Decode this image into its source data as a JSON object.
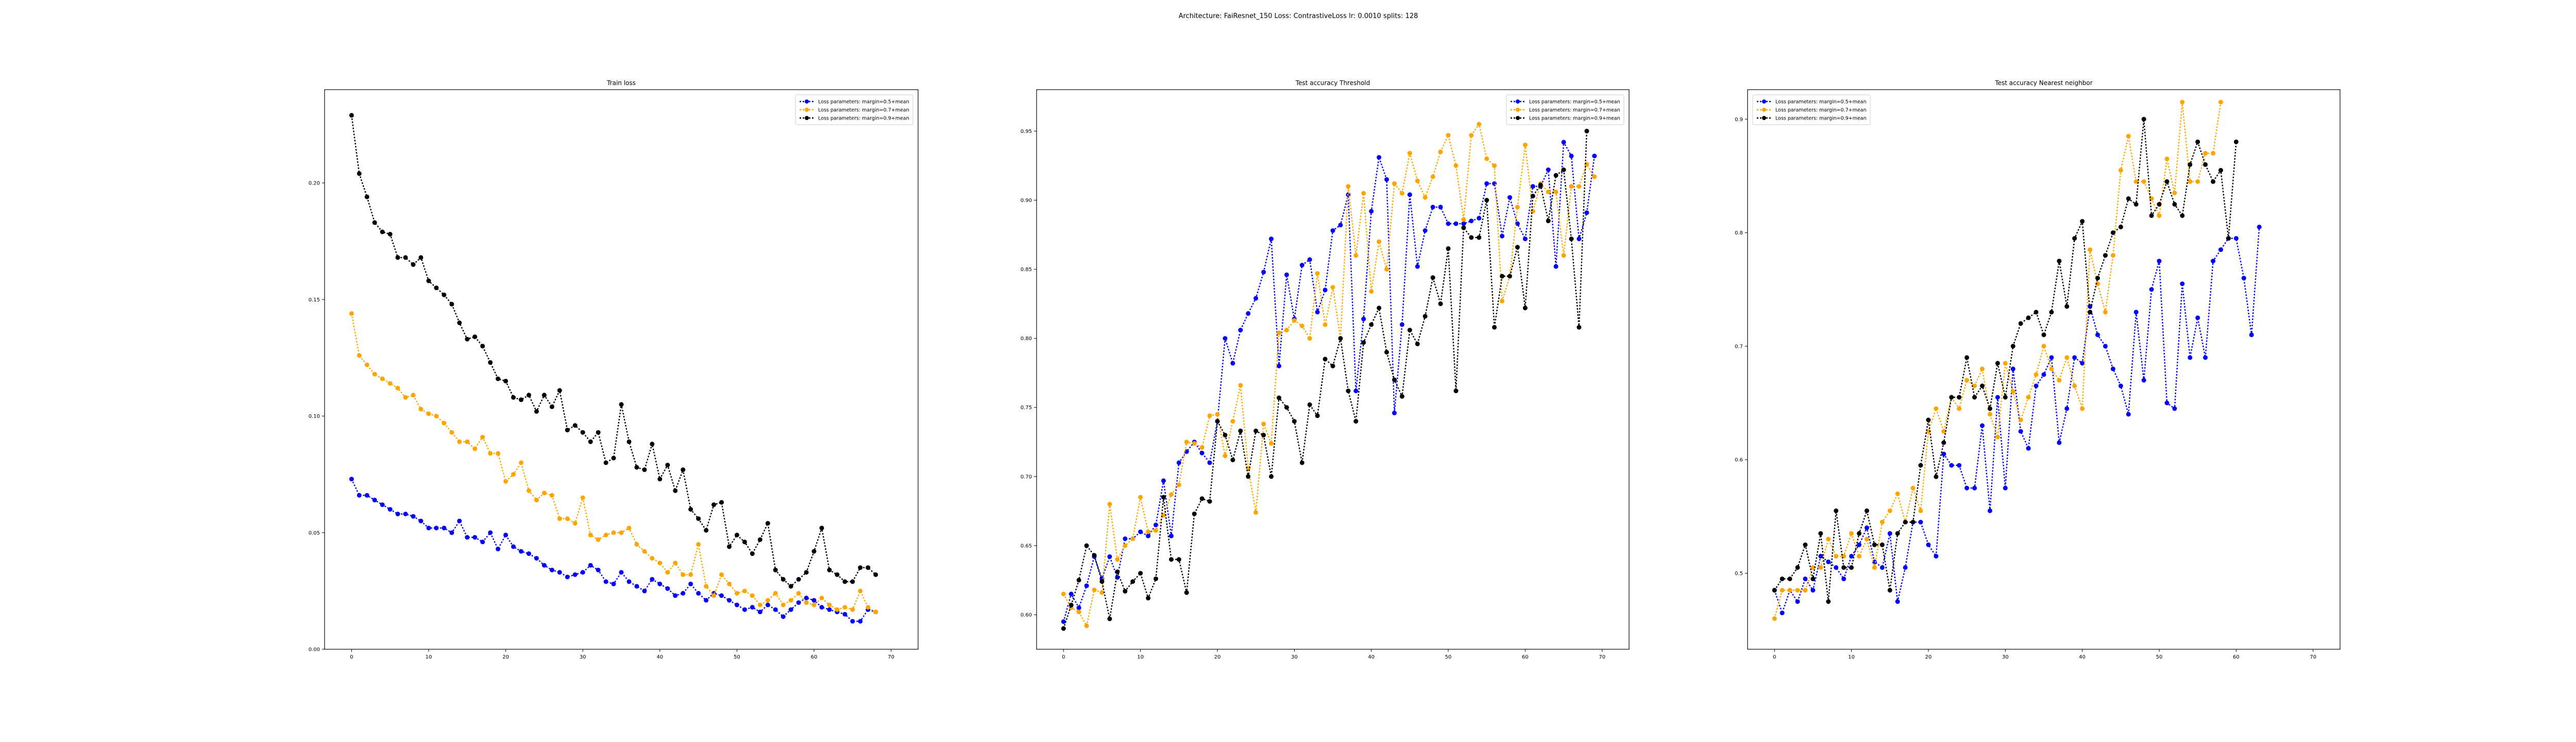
{
  "figure": {
    "suptitle": "Architecture: FaiResnet_150 Loss: ContrastiveLoss lr: 0.0010 splits: 128"
  },
  "chart_data": [
    {
      "type": "line",
      "title": "Train loss",
      "xlabel": "",
      "ylabel": "",
      "xlim": [
        -3.5,
        73.5
      ],
      "ylim": [
        0.0,
        0.24
      ],
      "xticks": [
        0,
        10,
        20,
        30,
        40,
        50,
        60,
        70
      ],
      "yticks": [
        0.0,
        0.05,
        0.1,
        0.15,
        0.2
      ],
      "ytick_labels": [
        "0.00",
        "0.05",
        "0.10",
        "0.15",
        "0.20"
      ],
      "grid": false,
      "legend_loc": "upper right",
      "series": [
        {
          "name": "Loss parameters: margin=0.5+mean",
          "color": "#0000ff",
          "values": [
            0.073,
            0.066,
            0.066,
            0.064,
            0.062,
            0.06,
            0.058,
            0.058,
            0.057,
            0.055,
            0.052,
            0.052,
            0.052,
            0.05,
            0.055,
            0.048,
            0.048,
            0.046,
            0.05,
            0.043,
            0.049,
            0.044,
            0.042,
            0.041,
            0.039,
            0.036,
            0.034,
            0.033,
            0.031,
            0.032,
            0.033,
            0.036,
            0.034,
            0.029,
            0.028,
            0.033,
            0.029,
            0.027,
            0.025,
            0.03,
            0.028,
            0.026,
            0.023,
            0.024,
            0.028,
            0.024,
            0.021,
            0.024,
            0.023,
            0.021,
            0.019,
            0.017,
            0.018,
            0.016,
            0.019,
            0.017,
            0.014,
            0.017,
            0.02,
            0.022,
            0.021,
            0.018,
            0.017,
            0.016,
            0.015,
            0.012,
            0.012,
            0.017,
            0.016
          ]
        },
        {
          "name": "Loss parameters: margin=0.7+mean",
          "color": "#ffa500",
          "values": [
            0.144,
            0.126,
            0.122,
            0.118,
            0.116,
            0.114,
            0.112,
            0.108,
            0.109,
            0.103,
            0.101,
            0.1,
            0.097,
            0.093,
            0.089,
            0.089,
            0.086,
            0.091,
            0.084,
            0.084,
            0.072,
            0.075,
            0.08,
            0.068,
            0.064,
            0.067,
            0.066,
            0.056,
            0.056,
            0.054,
            0.065,
            0.049,
            0.047,
            0.049,
            0.05,
            0.05,
            0.052,
            0.045,
            0.042,
            0.039,
            0.037,
            0.033,
            0.037,
            0.032,
            0.032,
            0.045,
            0.027,
            0.023,
            0.032,
            0.028,
            0.024,
            0.025,
            0.023,
            0.019,
            0.021,
            0.024,
            0.019,
            0.021,
            0.024,
            0.02,
            0.019,
            0.022,
            0.019,
            0.017,
            0.018,
            0.017,
            0.025,
            0.018,
            0.016
          ]
        },
        {
          "name": "Loss parameters: margin=0.9+mean",
          "color": "#000000",
          "values": [
            0.229,
            0.204,
            0.194,
            0.183,
            0.179,
            0.178,
            0.168,
            0.168,
            0.165,
            0.168,
            0.158,
            0.155,
            0.152,
            0.148,
            0.14,
            0.133,
            0.134,
            0.13,
            0.123,
            0.116,
            0.115,
            0.108,
            0.107,
            0.109,
            0.102,
            0.109,
            0.104,
            0.111,
            0.094,
            0.096,
            0.093,
            0.089,
            0.093,
            0.08,
            0.082,
            0.105,
            0.089,
            0.078,
            0.077,
            0.088,
            0.073,
            0.079,
            0.068,
            0.077,
            0.06,
            0.056,
            0.051,
            0.062,
            0.063,
            0.044,
            0.049,
            0.046,
            0.041,
            0.047,
            0.054,
            0.034,
            0.03,
            0.027,
            0.03,
            0.033,
            0.042,
            0.052,
            0.034,
            0.032,
            0.029,
            0.029,
            0.035,
            0.035,
            0.032
          ]
        }
      ]
    },
    {
      "type": "line",
      "title": "Test accuracy Threshold",
      "xlabel": "",
      "ylabel": "",
      "xlim": [
        -3.5,
        73.5
      ],
      "ylim": [
        0.575,
        0.98
      ],
      "xticks": [
        0,
        10,
        20,
        30,
        40,
        50,
        60,
        70
      ],
      "yticks": [
        0.6,
        0.65,
        0.7,
        0.75,
        0.8,
        0.85,
        0.9,
        0.95
      ],
      "ytick_labels": [
        "0.60",
        "0.65",
        "0.70",
        "0.75",
        "0.80",
        "0.85",
        "0.90",
        "0.95"
      ],
      "grid": false,
      "legend_loc": "upper right",
      "series": [
        {
          "name": "Loss parameters: margin=0.5+mean",
          "color": "#0000ff",
          "values": [
            0.595,
            0.615,
            0.605,
            0.621,
            0.642,
            0.626,
            0.642,
            0.627,
            0.655,
            0.655,
            0.66,
            0.657,
            0.665,
            0.697,
            0.657,
            0.71,
            0.718,
            0.725,
            0.717,
            0.71,
            0.74,
            0.8,
            0.782,
            0.806,
            0.818,
            0.829,
            0.848,
            0.872,
            0.78,
            0.846,
            0.814,
            0.853,
            0.857,
            0.819,
            0.835,
            0.878,
            0.882,
            0.904,
            0.762,
            0.814,
            0.892,
            0.931,
            0.915,
            0.746,
            0.81,
            0.904,
            0.852,
            0.878,
            0.895,
            0.895,
            0.883,
            0.883,
            0.883,
            0.885,
            0.887,
            0.912,
            0.912,
            0.874,
            0.902,
            0.883,
            0.872,
            0.91,
            0.91,
            0.922,
            0.852,
            0.942,
            0.932,
            0.872,
            0.891,
            0.932
          ]
        },
        {
          "name": "Loss parameters: margin=0.7+mean",
          "color": "#ffa500",
          "values": [
            0.615,
            0.605,
            0.602,
            0.592,
            0.618,
            0.616,
            0.68,
            0.64,
            0.65,
            0.655,
            0.685,
            0.66,
            0.661,
            0.672,
            0.687,
            0.694,
            0.725,
            0.724,
            0.721,
            0.744,
            0.745,
            0.715,
            0.74,
            0.766,
            0.706,
            0.674,
            0.738,
            0.724,
            0.804,
            0.806,
            0.813,
            0.809,
            0.8,
            0.847,
            0.81,
            0.837,
            0.8,
            0.91,
            0.86,
            0.905,
            0.834,
            0.87,
            0.85,
            0.912,
            0.905,
            0.934,
            0.914,
            0.902,
            0.917,
            0.935,
            0.947,
            0.925,
            0.886,
            0.947,
            0.955,
            0.93,
            0.925,
            0.827,
            0.845,
            0.895,
            0.94,
            0.892,
            0.912,
            0.906,
            0.906,
            0.86,
            0.91,
            0.91,
            0.926,
            0.917
          ]
        },
        {
          "name": "Loss parameters: margin=0.9+mean",
          "color": "#000000",
          "values": [
            0.59,
            0.607,
            0.625,
            0.65,
            0.643,
            0.624,
            0.597,
            0.631,
            0.617,
            0.624,
            0.63,
            0.612,
            0.626,
            0.685,
            0.64,
            0.64,
            0.616,
            0.673,
            0.684,
            0.682,
            0.74,
            0.73,
            0.712,
            0.733,
            0.7,
            0.733,
            0.73,
            0.7,
            0.757,
            0.75,
            0.74,
            0.71,
            0.752,
            0.744,
            0.785,
            0.78,
            0.8,
            0.762,
            0.74,
            0.797,
            0.81,
            0.822,
            0.79,
            0.77,
            0.758,
            0.806,
            0.796,
            0.816,
            0.844,
            0.825,
            0.865,
            0.762,
            0.88,
            0.873,
            0.873,
            0.9,
            0.808,
            0.845,
            0.845,
            0.866,
            0.822,
            0.903,
            0.911,
            0.885,
            0.918,
            0.922,
            0.872,
            0.808,
            0.95
          ]
        }
      ]
    },
    {
      "type": "line",
      "title": "Test accuracy Nearest neighbor",
      "xlabel": "",
      "ylabel": "",
      "xlim": [
        -3.5,
        73.5
      ],
      "ylim": [
        0.433,
        0.926
      ],
      "xticks": [
        0,
        10,
        20,
        30,
        40,
        50,
        60,
        70
      ],
      "yticks": [
        0.5,
        0.6,
        0.7,
        0.8,
        0.9
      ],
      "ytick_labels": [
        "0.5",
        "0.6",
        "0.7",
        "0.8",
        "0.9"
      ],
      "grid": false,
      "legend_loc": "upper left",
      "series": [
        {
          "name": "Loss parameters: margin=0.5+mean",
          "color": "#0000ff",
          "values": [
            0.485,
            0.465,
            0.485,
            0.475,
            0.495,
            0.485,
            0.515,
            0.51,
            0.505,
            0.495,
            0.515,
            0.525,
            0.54,
            0.51,
            0.505,
            0.535,
            0.475,
            0.505,
            0.545,
            0.545,
            0.525,
            0.515,
            0.605,
            0.595,
            0.595,
            0.575,
            0.575,
            0.63,
            0.555,
            0.655,
            0.575,
            0.68,
            0.625,
            0.61,
            0.665,
            0.675,
            0.69,
            0.615,
            0.645,
            0.69,
            0.685,
            0.735,
            0.71,
            0.7,
            0.68,
            0.665,
            0.64,
            0.73,
            0.67,
            0.75,
            0.775,
            0.65,
            0.645,
            0.755,
            0.69,
            0.725,
            0.69,
            0.775,
            0.785,
            0.795,
            0.795,
            0.76,
            0.71,
            0.805
          ]
        },
        {
          "name": "Loss parameters: margin=0.7+mean",
          "color": "#ffa500",
          "values": [
            0.46,
            0.485,
            0.485,
            0.485,
            0.485,
            0.505,
            0.505,
            0.53,
            0.515,
            0.515,
            0.535,
            0.515,
            0.53,
            0.505,
            0.545,
            0.555,
            0.57,
            0.545,
            0.575,
            0.555,
            0.625,
            0.645,
            0.625,
            0.655,
            0.645,
            0.67,
            0.665,
            0.68,
            0.64,
            0.62,
            0.685,
            0.66,
            0.635,
            0.655,
            0.675,
            0.7,
            0.68,
            0.67,
            0.69,
            0.665,
            0.645,
            0.785,
            0.755,
            0.73,
            0.78,
            0.855,
            0.885,
            0.845,
            0.845,
            0.83,
            0.815,
            0.865,
            0.835,
            0.915,
            0.845,
            0.845,
            0.87,
            0.87,
            0.915
          ]
        },
        {
          "name": "Loss parameters: margin=0.9+mean",
          "color": "#000000",
          "values": [
            0.485,
            0.495,
            0.495,
            0.505,
            0.525,
            0.495,
            0.535,
            0.475,
            0.555,
            0.505,
            0.505,
            0.535,
            0.555,
            0.525,
            0.525,
            0.485,
            0.535,
            0.545,
            0.545,
            0.595,
            0.635,
            0.585,
            0.615,
            0.655,
            0.655,
            0.69,
            0.655,
            0.665,
            0.645,
            0.685,
            0.655,
            0.7,
            0.72,
            0.725,
            0.73,
            0.71,
            0.73,
            0.775,
            0.735,
            0.795,
            0.81,
            0.73,
            0.76,
            0.78,
            0.8,
            0.805,
            0.83,
            0.825,
            0.9,
            0.815,
            0.825,
            0.845,
            0.825,
            0.815,
            0.86,
            0.88,
            0.86,
            0.845,
            0.855,
            0.795,
            0.88
          ]
        }
      ]
    }
  ]
}
